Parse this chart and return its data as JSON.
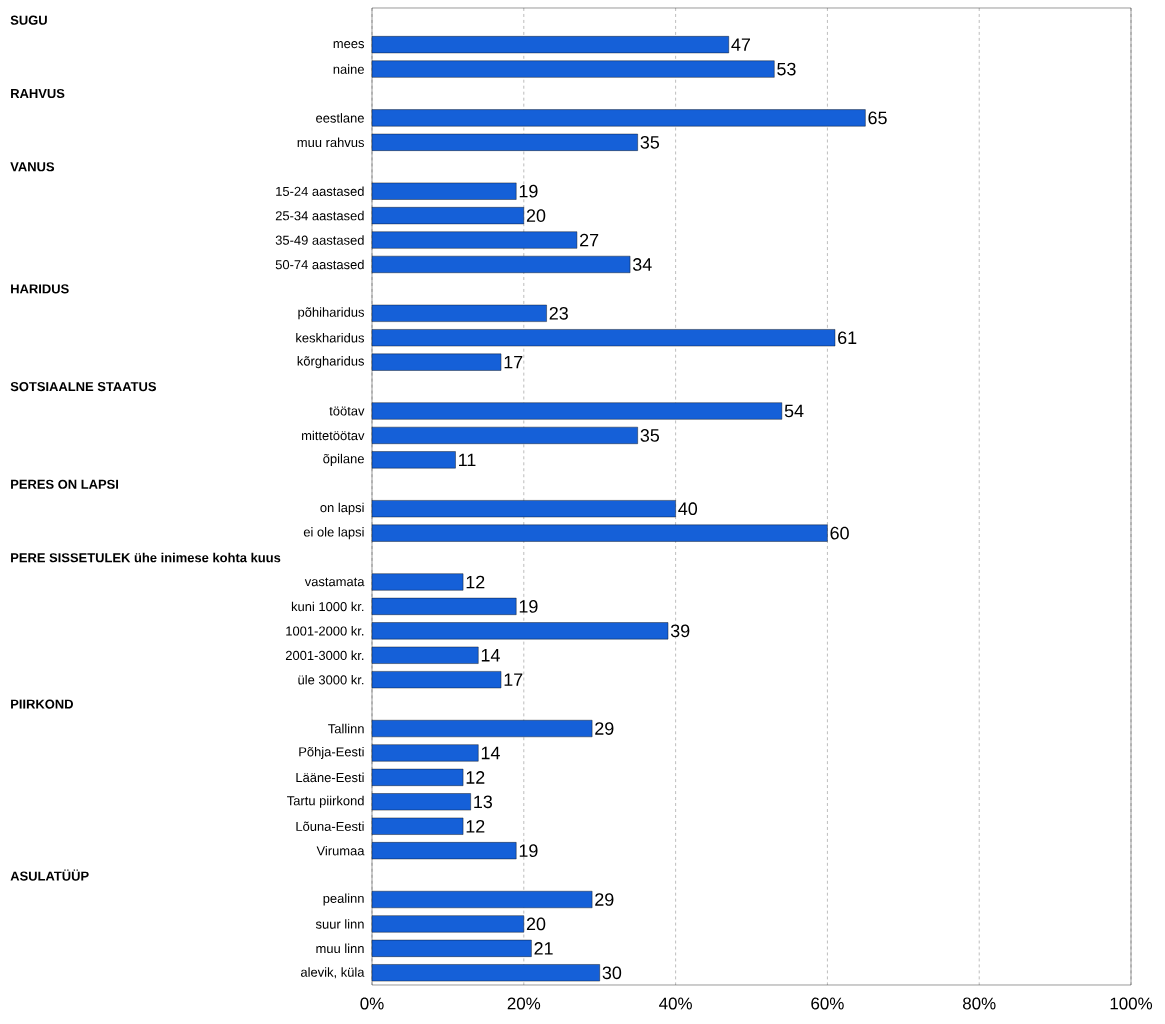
{
  "chart_data": {
    "type": "bar",
    "orientation": "horizontal",
    "categories": [
      null,
      "mees",
      "naine",
      null,
      "eestlane",
      "muu rahvus",
      null,
      "15-24 aastased",
      "25-34 aastased",
      "35-49 aastased",
      "50-74 aastased",
      null,
      "põhiharidus",
      "keskharidus",
      "kõrgharidus",
      null,
      "töötav",
      "mittetöötav",
      "õpilane",
      null,
      "on lapsi",
      "ei ole lapsi",
      null,
      "vastamata",
      "kuni 1000 kr.",
      "1001-2000 kr.",
      "2001-3000 kr.",
      "üle 3000 kr.",
      null,
      "Tallinn",
      "Põhja-Eesti",
      "Lääne-Eesti",
      "Tartu piirkond",
      "Lõuna-Eesti",
      "Virumaa",
      null,
      "pealinn",
      "suur linn",
      "muu linn",
      "alevik, küla"
    ],
    "values": [
      null,
      47,
      53,
      null,
      65,
      35,
      null,
      19,
      20,
      27,
      34,
      null,
      23,
      61,
      17,
      null,
      54,
      35,
      11,
      null,
      40,
      60,
      null,
      12,
      19,
      39,
      14,
      17,
      null,
      29,
      14,
      12,
      13,
      12,
      19,
      null,
      29,
      20,
      21,
      30
    ],
    "annotations": [
      "SUGU",
      "RAHVUS",
      "VANUS",
      "HARIDUS",
      "SOTSIAALNE STAATUS",
      "PERES ON LAPSI",
      "PERE SISSETULEK ühe inimese kohta kuus",
      "PIIRKOND",
      "ASULATÜÜP"
    ],
    "color": "#1560d8",
    "xlim": [
      0,
      100
    ],
    "xticks": [
      {
        "value": 0,
        "label": "0%"
      },
      {
        "value": 20,
        "label": "20%"
      },
      {
        "value": 40,
        "label": "40%"
      },
      {
        "value": 60,
        "label": "60%"
      },
      {
        "value": 80,
        "label": "80%"
      },
      {
        "value": 100,
        "label": "100%"
      }
    ],
    "grid": "x",
    "data_labels": true
  }
}
